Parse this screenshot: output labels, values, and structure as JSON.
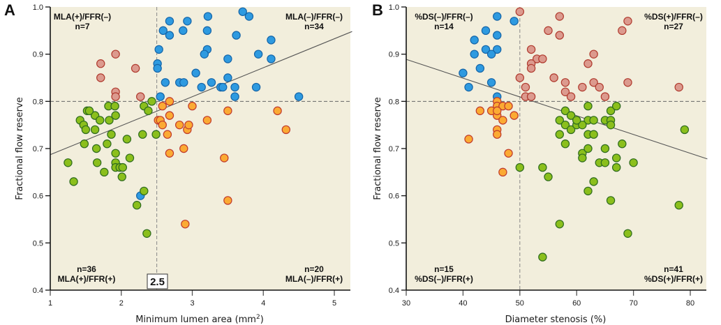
{
  "colors": {
    "background": "#f2eedc",
    "blue_fill": "#2e9ae0",
    "blue_stroke": "#1565a8",
    "pink_fill": "#dc9a8e",
    "pink_stroke": "#b03a2e",
    "orange_fill": "#fbaa33",
    "orange_stroke": "#c0392b",
    "green_fill": "#8bbf1c",
    "green_stroke": "#2e6b1e"
  },
  "chart_data": [
    {
      "type": "scatter",
      "panel_label": "A",
      "xlabel": "Minimum lumen area (mm",
      "xlabel_sup": "2",
      "xlabel_end": ")",
      "ylabel": "Fractional flow reserve",
      "xlim": [
        1,
        5.2
      ],
      "ylim": [
        0.4,
        1.0
      ],
      "xticks": [
        "1",
        "2",
        "3",
        "4",
        "5"
      ],
      "xtick_values": [
        1,
        2,
        3,
        4,
        5
      ],
      "yticks": [
        "0.4",
        "0.5",
        "0.6",
        "0.7",
        "0.8",
        "0.9",
        "1.0"
      ],
      "ytick_values": [
        0.4,
        0.5,
        0.6,
        0.7,
        0.8,
        0.9,
        1.0
      ],
      "cutoff_x": 2.5,
      "cutoff_x_label": "2.5",
      "cutoff_y": 0.8,
      "regression": {
        "x": [
          1.0,
          5.25
        ],
        "y": [
          0.687,
          0.948
        ]
      },
      "quadrants": {
        "top_left": {
          "label": "MLA(+)/FFR(–)",
          "n": "n=7"
        },
        "top_right": {
          "label": "MLA(–)/FFR(–)",
          "n": "n=34"
        },
        "bottom_left": {
          "label": "MLA(+)/FFR(+)",
          "n": "n=36"
        },
        "bottom_right": {
          "label": "MLA(–)/FFR(+)",
          "n": "n=20"
        }
      },
      "series": [
        {
          "name": "MLA(-)/FFR(-)",
          "color": "blue",
          "points": [
            [
              2.68,
              0.97
            ],
            [
              2.59,
              0.95
            ],
            [
              2.68,
              0.94
            ],
            [
              2.53,
              0.91
            ],
            [
              2.51,
              0.88
            ],
            [
              2.51,
              0.87
            ],
            [
              2.62,
              0.84
            ],
            [
              2.55,
              0.81
            ],
            [
              2.93,
              0.97
            ],
            [
              2.87,
              0.95
            ],
            [
              3.22,
              0.98
            ],
            [
              3.21,
              0.95
            ],
            [
              3.21,
              0.91
            ],
            [
              3.17,
              0.9
            ],
            [
              3.62,
              0.94
            ],
            [
              3.71,
              0.99
            ],
            [
              3.8,
              0.98
            ],
            [
              3.93,
              0.9
            ],
            [
              3.5,
              0.89
            ],
            [
              4.11,
              0.93
            ],
            [
              4.11,
              0.89
            ],
            [
              3.27,
              0.84
            ],
            [
              3.05,
              0.86
            ],
            [
              3.13,
              0.83
            ],
            [
              3.4,
              0.83
            ],
            [
              3.43,
              0.83
            ],
            [
              3.5,
              0.85
            ],
            [
              2.82,
              0.84
            ],
            [
              2.88,
              0.84
            ],
            [
              3.6,
              0.83
            ],
            [
              3.6,
              0.81
            ],
            [
              3.9,
              0.83
            ],
            [
              4.5,
              0.81
            ],
            [
              2.27,
              0.6
            ]
          ]
        },
        {
          "name": "MLA(+)/FFR(-)",
          "color": "pink",
          "points": [
            [
              1.71,
              0.88
            ],
            [
              1.71,
              0.85
            ],
            [
              1.92,
              0.9
            ],
            [
              2.2,
              0.87
            ],
            [
              1.92,
              0.82
            ],
            [
              1.92,
              0.81
            ],
            [
              2.27,
              0.81
            ]
          ]
        },
        {
          "name": "MLA(-)/FFR(+)",
          "color": "orange",
          "points": [
            [
              2.68,
              0.8
            ],
            [
              2.58,
              0.79
            ],
            [
              2.52,
              0.76
            ],
            [
              2.55,
              0.76
            ],
            [
              2.58,
              0.75
            ],
            [
              2.68,
              0.77
            ],
            [
              2.65,
              0.73
            ],
            [
              2.68,
              0.69
            ],
            [
              2.82,
              0.75
            ],
            [
              2.93,
              0.74
            ],
            [
              2.95,
              0.75
            ],
            [
              3.0,
              0.79
            ],
            [
              2.88,
              0.7
            ],
            [
              3.21,
              0.76
            ],
            [
              3.5,
              0.78
            ],
            [
              3.45,
              0.68
            ],
            [
              3.5,
              0.59
            ],
            [
              4.2,
              0.78
            ],
            [
              4.32,
              0.74
            ],
            [
              2.9,
              0.54
            ]
          ]
        },
        {
          "name": "MLA(+)/FFR(+)",
          "color": "green",
          "points": [
            [
              1.25,
              0.67
            ],
            [
              1.33,
              0.63
            ],
            [
              1.42,
              0.76
            ],
            [
              1.47,
              0.75
            ],
            [
              1.5,
              0.74
            ],
            [
              1.52,
              0.78
            ],
            [
              1.48,
              0.71
            ],
            [
              1.63,
              0.77
            ],
            [
              1.63,
              0.74
            ],
            [
              1.65,
              0.7
            ],
            [
              1.66,
              0.67
            ],
            [
              1.7,
              0.76
            ],
            [
              1.76,
              0.65
            ],
            [
              1.8,
              0.71
            ],
            [
              1.82,
              0.79
            ],
            [
              1.83,
              0.76
            ],
            [
              1.86,
              0.73
            ],
            [
              1.91,
              0.79
            ],
            [
              1.92,
              0.77
            ],
            [
              1.92,
              0.69
            ],
            [
              1.92,
              0.67
            ],
            [
              1.92,
              0.66
            ],
            [
              1.98,
              0.66
            ],
            [
              2.02,
              0.66
            ],
            [
              2.01,
              0.64
            ],
            [
              2.08,
              0.72
            ],
            [
              2.12,
              0.68
            ],
            [
              2.22,
              0.58
            ],
            [
              2.3,
              0.73
            ],
            [
              2.32,
              0.79
            ],
            [
              2.32,
              0.61
            ],
            [
              2.38,
              0.78
            ],
            [
              2.43,
              0.8
            ],
            [
              2.49,
              0.73
            ],
            [
              2.36,
              0.52
            ],
            [
              1.55,
              0.78
            ]
          ]
        }
      ]
    },
    {
      "type": "scatter",
      "panel_label": "B",
      "xlabel": "Diameter stenosis (%)",
      "ylabel": "Fractional flow reserve",
      "xlim": [
        30,
        83
      ],
      "ylim": [
        0.4,
        1.0
      ],
      "xticks": [
        "30",
        "40",
        "50",
        "60",
        "70",
        "80"
      ],
      "xtick_values": [
        30,
        40,
        50,
        60,
        70,
        80
      ],
      "yticks": [
        "0.4",
        "0.5",
        "0.6",
        "0.7",
        "0.8",
        "0.9",
        "1.0"
      ],
      "ytick_values": [
        0.4,
        0.5,
        0.6,
        0.7,
        0.8,
        0.9,
        1.0
      ],
      "cutoff_x": 50,
      "cutoff_y": 0.8,
      "regression": {
        "x": [
          30,
          83
        ],
        "y": [
          0.889,
          0.678
        ]
      },
      "quadrants": {
        "top_left": {
          "label": "%DS(–)/FFR(–)",
          "n": "n=14"
        },
        "top_right": {
          "label": "%DS(+)/FFR(–)",
          "n": "n=27"
        },
        "bottom_left": {
          "label": "%DS(–)/FFR(+)",
          "n": "n=15"
        },
        "bottom_right": {
          "label": "%DS(+)/FFR(+)",
          "n": "n=41"
        }
      },
      "series": [
        {
          "name": "%DS(-)/FFR(-)",
          "color": "blue",
          "points": [
            [
              46,
              0.98
            ],
            [
              49,
              0.97
            ],
            [
              44,
              0.95
            ],
            [
              46,
              0.94
            ],
            [
              42,
              0.93
            ],
            [
              44,
              0.91
            ],
            [
              46,
              0.91
            ],
            [
              42,
              0.9
            ],
            [
              45,
              0.9
            ],
            [
              43,
              0.87
            ],
            [
              40,
              0.86
            ],
            [
              41,
              0.83
            ],
            [
              45,
              0.84
            ],
            [
              46,
              0.81
            ]
          ]
        },
        {
          "name": "%DS(+)/FFR(-)",
          "color": "pink",
          "points": [
            [
              50,
              0.99
            ],
            [
              57,
              0.98
            ],
            [
              55,
              0.95
            ],
            [
              57,
              0.94
            ],
            [
              52,
              0.91
            ],
            [
              53,
              0.89
            ],
            [
              54,
              0.89
            ],
            [
              52,
              0.88
            ],
            [
              52,
              0.87
            ],
            [
              50,
              0.85
            ],
            [
              51,
              0.83
            ],
            [
              51,
              0.81
            ],
            [
              52,
              0.81
            ],
            [
              56,
              0.85
            ],
            [
              58,
              0.84
            ],
            [
              58,
              0.82
            ],
            [
              59,
              0.81
            ],
            [
              61,
              0.83
            ],
            [
              62,
              0.88
            ],
            [
              63,
              0.9
            ],
            [
              63,
              0.84
            ],
            [
              64,
              0.83
            ],
            [
              65,
              0.81
            ],
            [
              68,
              0.95
            ],
            [
              69,
              0.97
            ],
            [
              69,
              0.84
            ],
            [
              78,
              0.83
            ]
          ]
        },
        {
          "name": "%DS(-)/FFR(+)",
          "color": "orange",
          "points": [
            [
              46,
              0.8
            ],
            [
              46,
              0.79
            ],
            [
              47,
              0.79
            ],
            [
              48,
              0.79
            ],
            [
              43,
              0.78
            ],
            [
              45,
              0.78
            ],
            [
              46,
              0.77
            ],
            [
              47,
              0.76
            ],
            [
              49,
              0.77
            ],
            [
              46,
              0.74
            ],
            [
              46,
              0.73
            ],
            [
              41,
              0.72
            ],
            [
              48,
              0.69
            ],
            [
              47,
              0.65
            ],
            [
              46,
              0.78
            ]
          ]
        },
        {
          "name": "%DS(+)/FFR(+)",
          "color": "green",
          "points": [
            [
              50,
              0.66
            ],
            [
              54,
              0.66
            ],
            [
              55,
              0.64
            ],
            [
              54,
              0.47
            ],
            [
              57,
              0.54
            ],
            [
              57,
              0.76
            ],
            [
              58,
              0.78
            ],
            [
              58,
              0.75
            ],
            [
              57,
              0.73
            ],
            [
              58,
              0.71
            ],
            [
              59,
              0.77
            ],
            [
              59,
              0.74
            ],
            [
              60,
              0.75
            ],
            [
              61,
              0.69
            ],
            [
              61,
              0.68
            ],
            [
              62,
              0.79
            ],
            [
              62,
              0.76
            ],
            [
              62,
              0.73
            ],
            [
              62,
              0.7
            ],
            [
              62,
              0.61
            ],
            [
              63,
              0.76
            ],
            [
              63,
              0.73
            ],
            [
              63,
              0.63
            ],
            [
              64,
              0.67
            ],
            [
              65,
              0.67
            ],
            [
              65,
              0.7
            ],
            [
              65,
              0.76
            ],
            [
              66,
              0.78
            ],
            [
              66,
              0.76
            ],
            [
              66,
              0.75
            ],
            [
              66,
              0.59
            ],
            [
              67,
              0.79
            ],
            [
              67,
              0.68
            ],
            [
              67,
              0.66
            ],
            [
              68,
              0.71
            ],
            [
              69,
              0.52
            ],
            [
              70,
              0.67
            ],
            [
              78,
              0.58
            ],
            [
              79,
              0.74
            ],
            [
              61,
              0.75
            ],
            [
              60,
              0.76
            ]
          ]
        }
      ]
    }
  ]
}
